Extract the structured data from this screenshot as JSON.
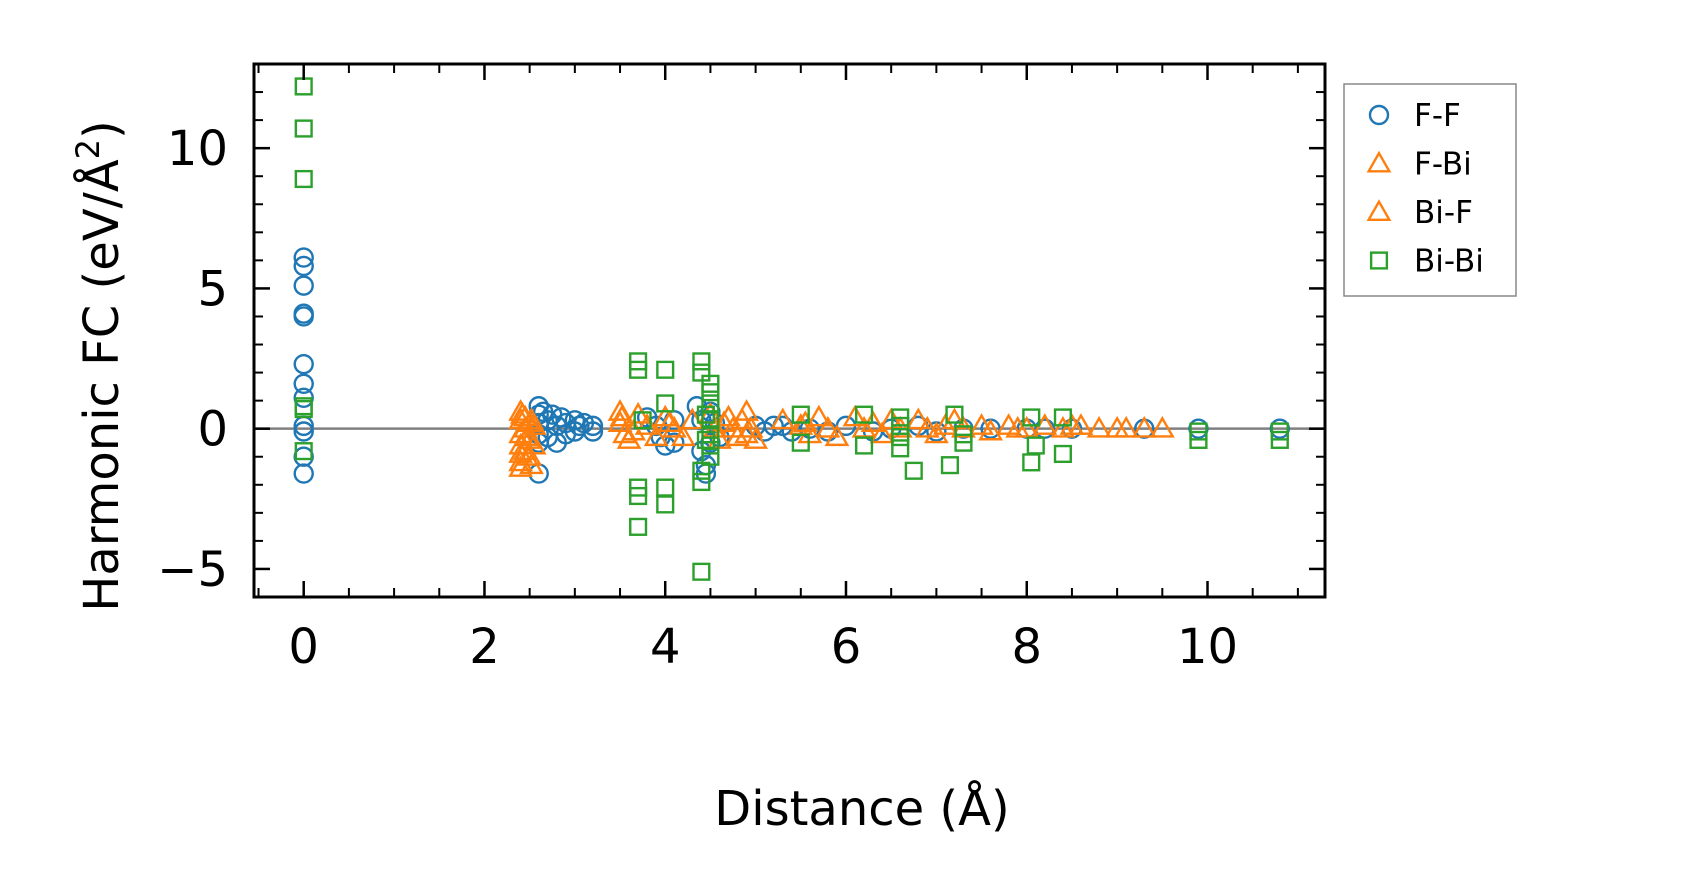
{
  "chart_data": {
    "type": "scatter",
    "title": "",
    "xlabel": "Distance (Å)",
    "ylabel_main": "Harmonic FC (eV/Å",
    "ylabel_sup": "2",
    "ylabel_close": ")",
    "xlim": [
      -0.55,
      11.3
    ],
    "ylim": [
      -6.0,
      13.0
    ],
    "xticks": [
      0,
      2,
      4,
      6,
      8,
      10
    ],
    "yticks": [
      -5,
      0,
      5,
      10
    ],
    "xtick_labels": [
      "0",
      "2",
      "4",
      "6",
      "8",
      "10"
    ],
    "ytick_labels": [
      "−5",
      "0",
      "5",
      "10"
    ],
    "zero_line": true,
    "grid": false,
    "legend_position": "outside-right-top",
    "series": [
      {
        "name": "F-F",
        "marker": "circle",
        "color": "#1f77b4",
        "points": [
          [
            0,
            6.1
          ],
          [
            0,
            5.8
          ],
          [
            0,
            5.1
          ],
          [
            0,
            4.1
          ],
          [
            0,
            4.0
          ],
          [
            0,
            2.3
          ],
          [
            0,
            1.6
          ],
          [
            0,
            1.1
          ],
          [
            0,
            0.1
          ],
          [
            0,
            -0.1
          ],
          [
            0,
            -1.0
          ],
          [
            0,
            -1.6
          ],
          [
            2.6,
            0.8
          ],
          [
            2.6,
            0.5
          ],
          [
            2.6,
            0.2
          ],
          [
            2.6,
            -0.2
          ],
          [
            2.6,
            -0.5
          ],
          [
            2.6,
            -1.6
          ],
          [
            2.65,
            0.6
          ],
          [
            2.7,
            0.3
          ],
          [
            2.7,
            -0.3
          ],
          [
            2.75,
            0.5
          ],
          [
            2.8,
            0.1
          ],
          [
            2.8,
            -0.5
          ],
          [
            2.85,
            0.4
          ],
          [
            2.9,
            0.2
          ],
          [
            2.9,
            -0.2
          ],
          [
            3.0,
            0.3
          ],
          [
            3.0,
            -0.1
          ],
          [
            3.05,
            0.1
          ],
          [
            3.1,
            0.2
          ],
          [
            3.2,
            0.1
          ],
          [
            3.2,
            -0.1
          ],
          [
            3.8,
            0.4
          ],
          [
            3.9,
            0.1
          ],
          [
            3.95,
            -0.3
          ],
          [
            4.0,
            -0.6
          ],
          [
            4.1,
            -0.5
          ],
          [
            4.1,
            0.3
          ],
          [
            4.35,
            0.8
          ],
          [
            4.4,
            0.3
          ],
          [
            4.4,
            -0.8
          ],
          [
            4.45,
            -1.3
          ],
          [
            4.45,
            -1.6
          ],
          [
            4.5,
            -0.5
          ],
          [
            4.5,
            0.6
          ],
          [
            4.55,
            0.2
          ],
          [
            4.6,
            -0.3
          ],
          [
            5.0,
            0.1
          ],
          [
            5.1,
            -0.1
          ],
          [
            5.2,
            0.1
          ],
          [
            5.3,
            0.1
          ],
          [
            5.4,
            -0.1
          ],
          [
            5.6,
            0.0
          ],
          [
            5.8,
            -0.1
          ],
          [
            6.0,
            0.1
          ],
          [
            6.3,
            -0.1
          ],
          [
            6.5,
            0.0
          ],
          [
            6.8,
            0.1
          ],
          [
            7.0,
            -0.1
          ],
          [
            7.3,
            0.0
          ],
          [
            7.6,
            0.0
          ],
          [
            8.0,
            0.0
          ],
          [
            8.2,
            0.0
          ],
          [
            8.5,
            0.0
          ],
          [
            9.3,
            0.0
          ],
          [
            9.9,
            0.0
          ],
          [
            10.8,
            0.0
          ]
        ]
      },
      {
        "name": "F-Bi",
        "marker": "triangle",
        "color": "#ff7f0e",
        "points": [
          [
            2.4,
            0.6
          ],
          [
            2.4,
            0.3
          ],
          [
            2.4,
            -0.2
          ],
          [
            2.4,
            -0.6
          ],
          [
            2.4,
            -0.9
          ],
          [
            2.4,
            -1.2
          ],
          [
            2.4,
            -1.4
          ],
          [
            2.45,
            0.4
          ],
          [
            2.45,
            0.0
          ],
          [
            2.45,
            -0.8
          ],
          [
            2.5,
            0.2
          ],
          [
            2.5,
            -0.4
          ],
          [
            2.5,
            -1.0
          ],
          [
            2.55,
            0.1
          ],
          [
            2.55,
            -0.6
          ],
          [
            3.5,
            0.6
          ],
          [
            3.5,
            0.2
          ],
          [
            3.55,
            -0.2
          ],
          [
            3.6,
            -0.4
          ],
          [
            3.7,
            0.5
          ],
          [
            3.8,
            0.1
          ],
          [
            3.9,
            -0.3
          ],
          [
            4.0,
            0.4
          ],
          [
            4.1,
            0.0
          ],
          [
            4.2,
            -0.3
          ],
          [
            4.3,
            0.3
          ],
          [
            4.5,
            0.5
          ],
          [
            4.55,
            0.0
          ],
          [
            4.6,
            -0.4
          ],
          [
            4.7,
            0.4
          ],
          [
            4.75,
            0.0
          ],
          [
            4.8,
            -0.3
          ],
          [
            4.85,
            0.3
          ],
          [
            4.9,
            0.6
          ],
          [
            4.95,
            0.0
          ],
          [
            5.0,
            -0.4
          ],
          [
            5.3,
            0.3
          ],
          [
            5.5,
            0.1
          ],
          [
            5.6,
            -0.2
          ],
          [
            5.7,
            0.4
          ],
          [
            5.8,
            0.0
          ],
          [
            5.9,
            -0.3
          ],
          [
            6.1,
            0.4
          ],
          [
            6.2,
            0.0
          ],
          [
            6.4,
            -0.2
          ],
          [
            6.5,
            0.3
          ],
          [
            6.6,
            0.0
          ],
          [
            6.8,
            0.3
          ],
          [
            6.9,
            0.0
          ],
          [
            7.0,
            -0.2
          ],
          [
            7.2,
            0.3
          ],
          [
            7.3,
            0.0
          ],
          [
            7.5,
            0.1
          ],
          [
            7.6,
            -0.1
          ],
          [
            7.8,
            0.1
          ],
          [
            8.0,
            0.0
          ],
          [
            8.2,
            0.1
          ],
          [
            8.4,
            0.0
          ],
          [
            8.6,
            0.1
          ],
          [
            8.8,
            0.0
          ],
          [
            9.0,
            0.0
          ],
          [
            9.3,
            0.0
          ],
          [
            9.5,
            0.0
          ]
        ]
      },
      {
        "name": "Bi-F",
        "marker": "triangle",
        "color": "#ff7f0e",
        "points": [
          [
            2.42,
            0.5
          ],
          [
            2.47,
            -0.3
          ],
          [
            2.52,
            0.3
          ],
          [
            2.52,
            -1.3
          ],
          [
            3.52,
            0.4
          ],
          [
            3.65,
            -0.1
          ],
          [
            4.05,
            0.2
          ],
          [
            4.65,
            0.2
          ],
          [
            4.9,
            -0.2
          ],
          [
            5.55,
            0.2
          ],
          [
            6.3,
            0.2
          ],
          [
            7.1,
            0.1
          ],
          [
            7.9,
            0.0
          ],
          [
            8.5,
            0.1
          ],
          [
            9.1,
            0.0
          ]
        ]
      },
      {
        "name": "Bi-Bi",
        "marker": "square",
        "color": "#2ca02c",
        "points": [
          [
            0,
            12.2
          ],
          [
            0,
            10.7
          ],
          [
            0,
            8.9
          ],
          [
            0,
            0.8
          ],
          [
            0,
            0.7
          ],
          [
            0,
            -0.8
          ],
          [
            3.7,
            2.4
          ],
          [
            3.7,
            2.1
          ],
          [
            3.7,
            -2.1
          ],
          [
            3.7,
            -2.4
          ],
          [
            3.7,
            -3.5
          ],
          [
            3.75,
            0.3
          ],
          [
            4.0,
            2.1
          ],
          [
            4.0,
            0.9
          ],
          [
            4.0,
            -2.1
          ],
          [
            4.0,
            -2.7
          ],
          [
            4.4,
            2.4
          ],
          [
            4.4,
            2.0
          ],
          [
            4.4,
            -1.5
          ],
          [
            4.4,
            -1.9
          ],
          [
            4.4,
            -5.1
          ],
          [
            4.45,
            0.5
          ],
          [
            4.45,
            -0.4
          ],
          [
            4.5,
            1.6
          ],
          [
            4.5,
            1.3
          ],
          [
            4.5,
            0.9
          ],
          [
            4.5,
            0.3
          ],
          [
            4.5,
            -0.2
          ],
          [
            4.5,
            -0.6
          ],
          [
            4.5,
            -1.0
          ],
          [
            5.5,
            0.5
          ],
          [
            5.5,
            -0.5
          ],
          [
            6.2,
            0.5
          ],
          [
            6.2,
            -0.6
          ],
          [
            6.6,
            0.4
          ],
          [
            6.6,
            0.1
          ],
          [
            6.6,
            -0.3
          ],
          [
            6.6,
            -0.7
          ],
          [
            6.75,
            -1.5
          ],
          [
            7.15,
            -1.3
          ],
          [
            7.2,
            0.5
          ],
          [
            7.3,
            -0.2
          ],
          [
            7.3,
            -0.5
          ],
          [
            8.05,
            0.4
          ],
          [
            8.05,
            -1.2
          ],
          [
            8.1,
            -0.6
          ],
          [
            8.4,
            0.4
          ],
          [
            8.4,
            -0.9
          ],
          [
            9.9,
            -0.1
          ],
          [
            9.9,
            -0.4
          ],
          [
            10.8,
            -0.1
          ],
          [
            10.8,
            -0.4
          ]
        ]
      }
    ]
  }
}
